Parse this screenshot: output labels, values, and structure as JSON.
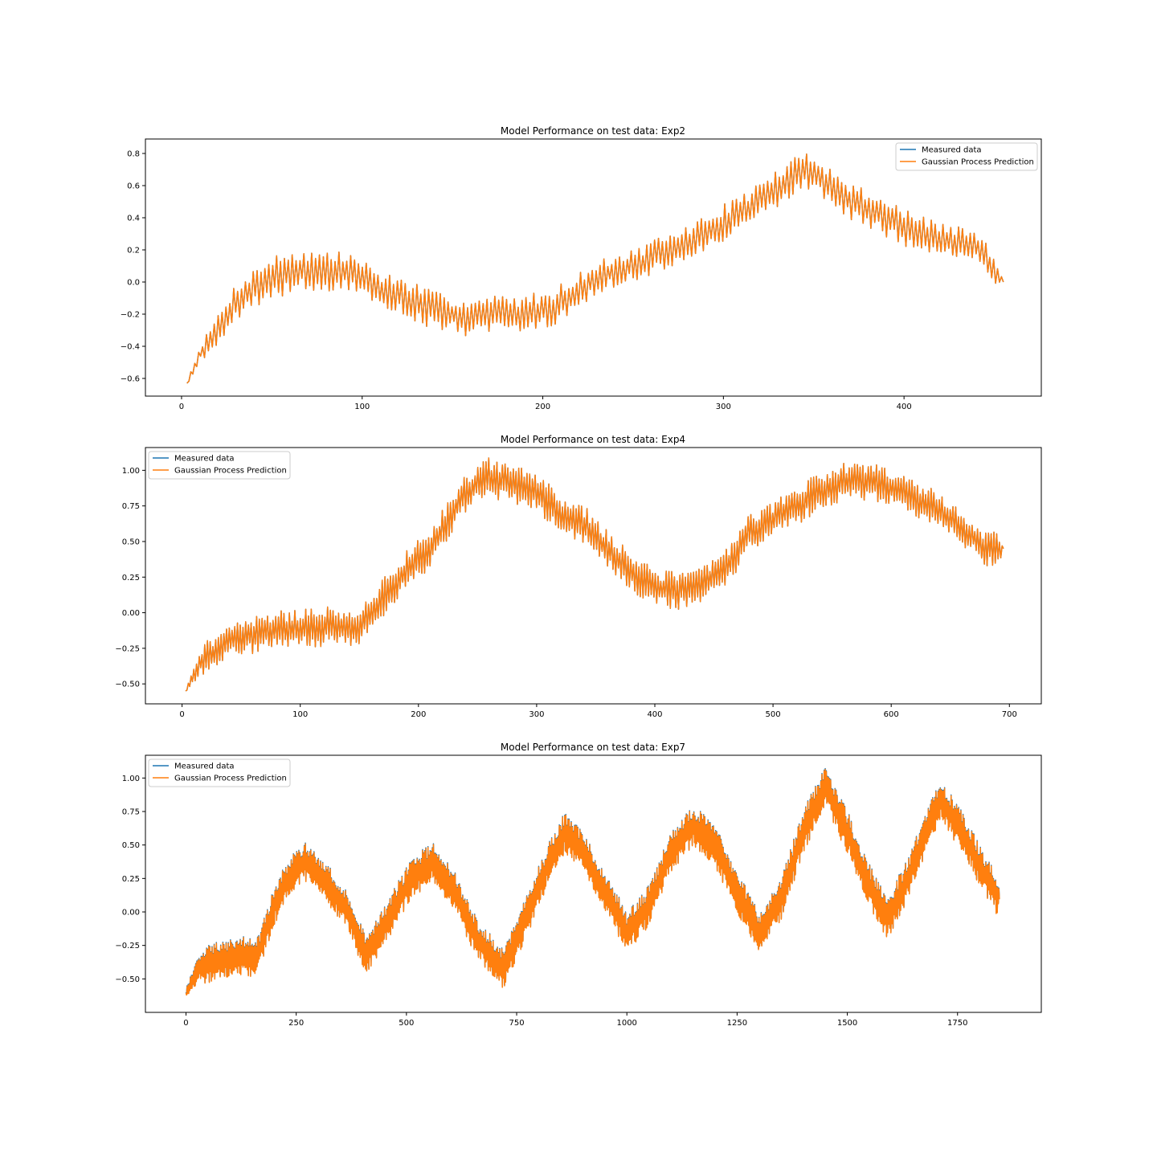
{
  "colors": {
    "measured": "#1f77b4",
    "prediction": "#ff7f0e",
    "axes": "#000000",
    "legend_border": "#cccccc"
  },
  "chart_data": [
    {
      "type": "line",
      "title": "Model Performance on test data: Exp2",
      "xlabel": "",
      "ylabel": "",
      "xlim": [
        -20,
        476
      ],
      "ylim": [
        -0.71,
        0.89
      ],
      "xticks": [
        0,
        100,
        200,
        300,
        400
      ],
      "xtick_labels": [
        "0",
        "100",
        "200",
        "300",
        "400"
      ],
      "yticks": [
        -0.6,
        -0.4,
        -0.2,
        0.0,
        0.2,
        0.4,
        0.6,
        0.8
      ],
      "ytick_labels": [
        "−0.6",
        "−0.4",
        "−0.2",
        "0.0",
        "0.2",
        "0.4",
        "0.6",
        "0.8"
      ],
      "grid": false,
      "legend_loc": "upper right",
      "x_range": [
        3,
        455
      ],
      "n_points": 420,
      "anchors": [
        [
          3,
          -0.63
        ],
        [
          10,
          -0.45
        ],
        [
          20,
          -0.3
        ],
        [
          30,
          -0.12
        ],
        [
          45,
          0.0
        ],
        [
          60,
          0.07
        ],
        [
          80,
          0.07
        ],
        [
          95,
          0.06
        ],
        [
          110,
          -0.05
        ],
        [
          125,
          -0.1
        ],
        [
          140,
          -0.18
        ],
        [
          160,
          -0.22
        ],
        [
          175,
          -0.2
        ],
        [
          190,
          -0.2
        ],
        [
          205,
          -0.16
        ],
        [
          220,
          -0.05
        ],
        [
          235,
          0.05
        ],
        [
          250,
          0.1
        ],
        [
          265,
          0.17
        ],
        [
          280,
          0.24
        ],
        [
          295,
          0.33
        ],
        [
          310,
          0.43
        ],
        [
          330,
          0.58
        ],
        [
          345,
          0.7
        ],
        [
          352,
          0.68
        ],
        [
          365,
          0.53
        ],
        [
          380,
          0.46
        ],
        [
          395,
          0.37
        ],
        [
          410,
          0.29
        ],
        [
          425,
          0.25
        ],
        [
          440,
          0.22
        ],
        [
          455,
          0.0
        ]
      ],
      "amp_anchors": [
        [
          3,
          0.01
        ],
        [
          20,
          0.1
        ],
        [
          50,
          0.14
        ],
        [
          100,
          0.12
        ],
        [
          150,
          0.12
        ],
        [
          200,
          0.12
        ],
        [
          240,
          0.1
        ],
        [
          300,
          0.12
        ],
        [
          350,
          0.12
        ],
        [
          400,
          0.12
        ],
        [
          450,
          0.1
        ],
        [
          455,
          0.01
        ]
      ],
      "seed": 7,
      "series": [
        {
          "name": "Measured data",
          "color": "#1f77b4",
          "offset": 0.0
        },
        {
          "name": "Gaussian Process Prediction",
          "color": "#ff7f0e",
          "offset": 0.0
        }
      ]
    },
    {
      "type": "line",
      "title": "Model Performance on test data: Exp4",
      "xlabel": "",
      "ylabel": "",
      "xlim": [
        -31,
        727
      ],
      "ylim": [
        -0.64,
        1.16
      ],
      "xticks": [
        0,
        100,
        200,
        300,
        400,
        500,
        600,
        700
      ],
      "xtick_labels": [
        "0",
        "100",
        "200",
        "300",
        "400",
        "500",
        "600",
        "700"
      ],
      "yticks": [
        -0.5,
        -0.25,
        0.0,
        0.25,
        0.5,
        0.75,
        1.0
      ],
      "ytick_labels": [
        "−0.50",
        "−0.25",
        "0.00",
        "0.25",
        "0.50",
        "0.75",
        "1.00"
      ],
      "grid": false,
      "legend_loc": "upper left",
      "x_range": [
        3,
        695
      ],
      "n_points": 600,
      "anchors": [
        [
          3,
          -0.55
        ],
        [
          15,
          -0.35
        ],
        [
          40,
          -0.2
        ],
        [
          80,
          -0.12
        ],
        [
          120,
          -0.1
        ],
        [
          150,
          -0.1
        ],
        [
          170,
          0.1
        ],
        [
          190,
          0.3
        ],
        [
          210,
          0.45
        ],
        [
          225,
          0.65
        ],
        [
          240,
          0.85
        ],
        [
          260,
          0.95
        ],
        [
          280,
          0.9
        ],
        [
          300,
          0.85
        ],
        [
          320,
          0.7
        ],
        [
          340,
          0.62
        ],
        [
          360,
          0.45
        ],
        [
          380,
          0.28
        ],
        [
          400,
          0.18
        ],
        [
          420,
          0.15
        ],
        [
          440,
          0.2
        ],
        [
          460,
          0.32
        ],
        [
          480,
          0.55
        ],
        [
          500,
          0.65
        ],
        [
          520,
          0.75
        ],
        [
          540,
          0.85
        ],
        [
          560,
          0.92
        ],
        [
          580,
          0.93
        ],
        [
          600,
          0.88
        ],
        [
          620,
          0.8
        ],
        [
          640,
          0.72
        ],
        [
          660,
          0.6
        ],
        [
          680,
          0.45
        ],
        [
          695,
          0.45
        ]
      ],
      "amp_anchors": [
        [
          3,
          0.02
        ],
        [
          20,
          0.12
        ],
        [
          100,
          0.14
        ],
        [
          200,
          0.14
        ],
        [
          300,
          0.14
        ],
        [
          400,
          0.13
        ],
        [
          500,
          0.14
        ],
        [
          600,
          0.14
        ],
        [
          690,
          0.12
        ],
        [
          695,
          0.02
        ]
      ],
      "seed": 21,
      "series": [
        {
          "name": "Measured data",
          "color": "#1f77b4",
          "offset": 0.0
        },
        {
          "name": "Gaussian Process Prediction",
          "color": "#ff7f0e",
          "offset": 0.0
        }
      ]
    },
    {
      "type": "line",
      "title": "Model Performance on test data: Exp7",
      "xlabel": "",
      "ylabel": "",
      "xlim": [
        -92,
        1940
      ],
      "ylim": [
        -0.75,
        1.17
      ],
      "xticks": [
        0,
        250,
        500,
        750,
        1000,
        1250,
        1500,
        1750
      ],
      "xtick_labels": [
        "0",
        "250",
        "500",
        "750",
        "1000",
        "1250",
        "1500",
        "1750"
      ],
      "yticks": [
        -0.5,
        -0.25,
        0.0,
        0.25,
        0.5,
        0.75,
        1.0
      ],
      "ytick_labels": [
        "−0.50",
        "−0.25",
        "0.00",
        "0.25",
        "0.50",
        "0.75",
        "1.00"
      ],
      "grid": false,
      "legend_loc": "upper left",
      "x_range": [
        0,
        1845
      ],
      "n_points": 1500,
      "anchors": [
        [
          0,
          -0.6
        ],
        [
          30,
          -0.42
        ],
        [
          80,
          -0.35
        ],
        [
          130,
          -0.32
        ],
        [
          160,
          -0.35
        ],
        [
          200,
          0.05
        ],
        [
          240,
          0.3
        ],
        [
          270,
          0.38
        ],
        [
          310,
          0.25
        ],
        [
          360,
          0.05
        ],
        [
          410,
          -0.32
        ],
        [
          460,
          -0.05
        ],
        [
          510,
          0.25
        ],
        [
          560,
          0.38
        ],
        [
          610,
          0.15
        ],
        [
          660,
          -0.2
        ],
        [
          720,
          -0.42
        ],
        [
          770,
          -0.05
        ],
        [
          820,
          0.35
        ],
        [
          860,
          0.6
        ],
        [
          900,
          0.45
        ],
        [
          960,
          0.1
        ],
        [
          1000,
          -0.15
        ],
        [
          1050,
          0.05
        ],
        [
          1100,
          0.45
        ],
        [
          1150,
          0.65
        ],
        [
          1200,
          0.5
        ],
        [
          1250,
          0.15
        ],
        [
          1300,
          -0.15
        ],
        [
          1350,
          0.1
        ],
        [
          1400,
          0.6
        ],
        [
          1450,
          0.95
        ],
        [
          1500,
          0.6
        ],
        [
          1550,
          0.2
        ],
        [
          1590,
          -0.05
        ],
        [
          1630,
          0.2
        ],
        [
          1680,
          0.6
        ],
        [
          1710,
          0.85
        ],
        [
          1760,
          0.6
        ],
        [
          1800,
          0.35
        ],
        [
          1845,
          0.1
        ]
      ],
      "amp_anchors": [
        [
          0,
          0.04
        ],
        [
          50,
          0.14
        ],
        [
          500,
          0.15
        ],
        [
          1000,
          0.15
        ],
        [
          1500,
          0.16
        ],
        [
          1840,
          0.15
        ],
        [
          1845,
          0.05
        ]
      ],
      "seed": 99,
      "series": [
        {
          "name": "Measured data",
          "color": "#1f77b4",
          "offset": 0.0
        },
        {
          "name": "Gaussian Process Prediction",
          "color": "#ff7f0e",
          "offset": -0.006
        }
      ]
    }
  ]
}
